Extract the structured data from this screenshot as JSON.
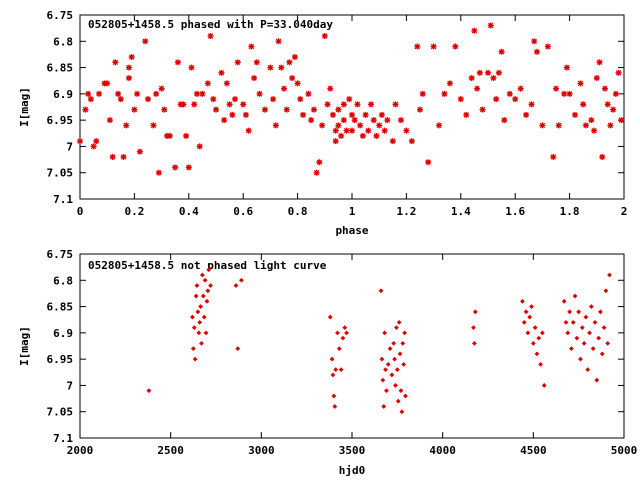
{
  "chart_data": [
    {
      "type": "scatter",
      "title": "052805+1458.5 phased with P=33.040day",
      "xlabel": "phase",
      "ylabel": "I[mag]",
      "xlim": [
        0,
        2
      ],
      "ylim": [
        6.75,
        7.1
      ],
      "y_inverted": true,
      "grid": false,
      "marker": "star",
      "color": "#e00000",
      "x_ticks": [
        "0",
        "0.2",
        "0.4",
        "0.6",
        "0.8",
        "1",
        "1.2",
        "1.4",
        "1.6",
        "1.8",
        "2"
      ],
      "y_ticks": [
        "6.75",
        "6.8",
        "6.85",
        "6.9",
        "6.95",
        "7",
        "7.05",
        "7.1"
      ],
      "series": [
        {
          "points": [
            [
              0.0,
              6.99
            ],
            [
              0.02,
              6.93
            ],
            [
              0.03,
              6.9
            ],
            [
              0.04,
              6.91
            ],
            [
              0.05,
              7.0
            ],
            [
              0.06,
              6.99
            ],
            [
              0.07,
              6.9
            ],
            [
              0.09,
              6.88
            ],
            [
              0.1,
              6.88
            ],
            [
              0.11,
              6.95
            ],
            [
              0.12,
              7.02
            ],
            [
              0.13,
              6.84
            ],
            [
              0.14,
              6.9
            ],
            [
              0.15,
              6.91
            ],
            [
              0.16,
              7.02
            ],
            [
              0.17,
              6.96
            ],
            [
              0.18,
              6.85
            ],
            [
              0.18,
              6.87
            ],
            [
              0.19,
              6.83
            ],
            [
              0.2,
              6.93
            ],
            [
              0.21,
              6.9
            ],
            [
              0.22,
              7.01
            ],
            [
              0.24,
              6.8
            ],
            [
              0.25,
              6.91
            ],
            [
              0.27,
              6.96
            ],
            [
              0.28,
              6.9
            ],
            [
              0.29,
              7.05
            ],
            [
              0.3,
              6.89
            ],
            [
              0.31,
              6.93
            ],
            [
              0.32,
              6.98
            ],
            [
              0.33,
              6.98
            ],
            [
              0.35,
              7.04
            ],
            [
              0.36,
              6.84
            ],
            [
              0.37,
              6.92
            ],
            [
              0.38,
              6.92
            ],
            [
              0.39,
              6.98
            ],
            [
              0.4,
              7.04
            ],
            [
              0.41,
              6.85
            ],
            [
              0.42,
              6.92
            ],
            [
              0.43,
              6.9
            ],
            [
              0.44,
              7.0
            ],
            [
              0.45,
              6.9
            ],
            [
              0.47,
              6.88
            ],
            [
              0.48,
              6.79
            ],
            [
              0.49,
              6.91
            ],
            [
              0.5,
              6.93
            ],
            [
              0.52,
              6.86
            ],
            [
              0.53,
              6.95
            ],
            [
              0.54,
              6.88
            ],
            [
              0.55,
              6.92
            ],
            [
              0.56,
              6.94
            ],
            [
              0.57,
              6.91
            ],
            [
              0.58,
              6.84
            ],
            [
              0.6,
              6.92
            ],
            [
              0.61,
              6.94
            ],
            [
              0.62,
              6.97
            ],
            [
              0.63,
              6.81
            ],
            [
              0.64,
              6.87
            ],
            [
              0.65,
              6.84
            ],
            [
              0.66,
              6.9
            ],
            [
              0.68,
              6.93
            ],
            [
              0.7,
              6.85
            ],
            [
              0.71,
              6.91
            ],
            [
              0.72,
              6.96
            ],
            [
              0.73,
              6.8
            ],
            [
              0.74,
              6.85
            ],
            [
              0.75,
              6.89
            ],
            [
              0.76,
              6.93
            ],
            [
              0.77,
              6.84
            ],
            [
              0.78,
              6.87
            ],
            [
              0.79,
              6.83
            ],
            [
              0.8,
              6.88
            ],
            [
              0.81,
              6.91
            ],
            [
              0.82,
              6.94
            ],
            [
              0.84,
              6.9
            ],
            [
              0.85,
              6.95
            ],
            [
              0.86,
              6.93
            ],
            [
              0.87,
              7.05
            ],
            [
              0.88,
              7.03
            ],
            [
              0.89,
              6.96
            ],
            [
              0.9,
              6.79
            ],
            [
              0.91,
              6.92
            ],
            [
              0.92,
              6.89
            ],
            [
              0.93,
              6.94
            ],
            [
              0.94,
              6.97
            ],
            [
              0.94,
              6.99
            ],
            [
              0.95,
              6.93
            ],
            [
              0.95,
              6.96
            ],
            [
              0.96,
              6.98
            ],
            [
              0.97,
              6.92
            ],
            [
              0.97,
              6.95
            ],
            [
              0.98,
              6.97
            ],
            [
              0.99,
              6.91
            ],
            [
              1.0,
              6.94
            ],
            [
              1.0,
              6.97
            ],
            [
              1.01,
              6.95
            ],
            [
              1.02,
              6.92
            ],
            [
              1.03,
              6.96
            ],
            [
              1.04,
              6.98
            ],
            [
              1.05,
              6.94
            ],
            [
              1.06,
              6.97
            ],
            [
              1.07,
              6.92
            ],
            [
              1.08,
              6.95
            ],
            [
              1.09,
              6.98
            ],
            [
              1.1,
              6.96
            ],
            [
              1.11,
              6.94
            ],
            [
              1.12,
              6.97
            ],
            [
              1.13,
              6.95
            ],
            [
              1.15,
              6.99
            ],
            [
              1.16,
              6.92
            ],
            [
              1.18,
              6.95
            ],
            [
              1.2,
              6.97
            ],
            [
              1.22,
              6.99
            ],
            [
              1.24,
              6.81
            ],
            [
              1.25,
              6.93
            ],
            [
              1.26,
              6.9
            ],
            [
              1.28,
              7.03
            ],
            [
              1.3,
              6.81
            ],
            [
              1.32,
              6.96
            ],
            [
              1.34,
              6.9
            ],
            [
              1.36,
              6.88
            ],
            [
              1.38,
              6.81
            ],
            [
              1.4,
              6.91
            ],
            [
              1.42,
              6.94
            ],
            [
              1.44,
              6.87
            ],
            [
              1.45,
              6.78
            ],
            [
              1.46,
              6.89
            ],
            [
              1.47,
              6.86
            ],
            [
              1.48,
              6.93
            ],
            [
              1.5,
              6.86
            ],
            [
              1.51,
              6.77
            ],
            [
              1.52,
              6.87
            ],
            [
              1.53,
              6.91
            ],
            [
              1.54,
              6.86
            ],
            [
              1.55,
              6.82
            ],
            [
              1.56,
              6.95
            ],
            [
              1.58,
              6.9
            ],
            [
              1.6,
              6.91
            ],
            [
              1.62,
              6.89
            ],
            [
              1.64,
              6.94
            ],
            [
              1.66,
              6.92
            ],
            [
              1.67,
              6.8
            ],
            [
              1.68,
              6.82
            ],
            [
              1.7,
              6.96
            ],
            [
              1.72,
              6.81
            ],
            [
              1.74,
              7.02
            ],
            [
              1.75,
              6.89
            ],
            [
              1.76,
              6.96
            ],
            [
              1.78,
              6.9
            ],
            [
              1.79,
              6.85
            ],
            [
              1.8,
              6.9
            ],
            [
              1.82,
              6.94
            ],
            [
              1.84,
              6.88
            ],
            [
              1.85,
              6.92
            ],
            [
              1.86,
              6.96
            ],
            [
              1.88,
              6.95
            ],
            [
              1.89,
              6.97
            ],
            [
              1.9,
              6.87
            ],
            [
              1.91,
              6.84
            ],
            [
              1.92,
              7.02
            ],
            [
              1.93,
              6.89
            ],
            [
              1.94,
              6.92
            ],
            [
              1.95,
              6.96
            ],
            [
              1.96,
              6.93
            ],
            [
              1.97,
              6.9
            ],
            [
              1.98,
              6.86
            ],
            [
              1.99,
              6.95
            ]
          ]
        }
      ]
    },
    {
      "type": "scatter",
      "title": "052805+1458.5 not phased light curve",
      "xlabel": "hjd0",
      "ylabel": "I[mag]",
      "xlim": [
        2000,
        5000
      ],
      "ylim": [
        6.75,
        7.1
      ],
      "y_inverted": true,
      "grid": false,
      "marker": "diamond",
      "color": "#e00000",
      "x_ticks": [
        "2000",
        "2500",
        "3000",
        "3500",
        "4000",
        "4500",
        "5000"
      ],
      "y_ticks": [
        "6.75",
        "6.8",
        "6.85",
        "6.9",
        "6.95",
        "7",
        "7.05",
        "7.1"
      ],
      "series": [
        {
          "points": [
            [
              2380,
              7.01
            ],
            [
              2620,
              6.87
            ],
            [
              2625,
              6.93
            ],
            [
              2630,
              6.89
            ],
            [
              2635,
              6.95
            ],
            [
              2640,
              6.83
            ],
            [
              2645,
              6.81
            ],
            [
              2650,
              6.86
            ],
            [
              2655,
              6.9
            ],
            [
              2660,
              6.88
            ],
            [
              2665,
              6.85
            ],
            [
              2670,
              6.92
            ],
            [
              2675,
              6.79
            ],
            [
              2680,
              6.83
            ],
            [
              2685,
              6.87
            ],
            [
              2690,
              6.8
            ],
            [
              2695,
              6.9
            ],
            [
              2700,
              6.84
            ],
            [
              2705,
              6.82
            ],
            [
              2710,
              6.78
            ],
            [
              2720,
              6.81
            ],
            [
              2860,
              6.81
            ],
            [
              2870,
              6.93
            ],
            [
              2890,
              6.8
            ],
            [
              3380,
              6.87
            ],
            [
              3390,
              6.95
            ],
            [
              3395,
              6.98
            ],
            [
              3400,
              7.02
            ],
            [
              3405,
              7.04
            ],
            [
              3410,
              6.97
            ],
            [
              3420,
              6.9
            ],
            [
              3430,
              6.93
            ],
            [
              3440,
              6.97
            ],
            [
              3450,
              6.91
            ],
            [
              3460,
              6.89
            ],
            [
              3470,
              6.9
            ],
            [
              3660,
              6.82
            ],
            [
              3665,
              6.95
            ],
            [
              3670,
              6.99
            ],
            [
              3675,
              7.04
            ],
            [
              3680,
              6.9
            ],
            [
              3685,
              6.97
            ],
            [
              3690,
              7.01
            ],
            [
              3700,
              6.96
            ],
            [
              3710,
              6.93
            ],
            [
              3720,
              6.98
            ],
            [
              3730,
              6.92
            ],
            [
              3735,
              6.95
            ],
            [
              3740,
              7.0
            ],
            [
              3745,
              6.89
            ],
            [
              3750,
              6.97
            ],
            [
              3755,
              7.03
            ],
            [
              3760,
              6.88
            ],
            [
              3765,
              6.94
            ],
            [
              3770,
              7.01
            ],
            [
              3775,
              7.05
            ],
            [
              3780,
              6.92
            ],
            [
              3785,
              6.96
            ],
            [
              3790,
              6.9
            ],
            [
              3795,
              7.02
            ],
            [
              4170,
              6.89
            ],
            [
              4175,
              6.92
            ],
            [
              4180,
              6.86
            ],
            [
              4440,
              6.84
            ],
            [
              4450,
              6.88
            ],
            [
              4460,
              6.86
            ],
            [
              4470,
              6.9
            ],
            [
              4480,
              6.87
            ],
            [
              4490,
              6.85
            ],
            [
              4500,
              6.92
            ],
            [
              4510,
              6.89
            ],
            [
              4520,
              6.94
            ],
            [
              4530,
              6.91
            ],
            [
              4540,
              6.96
            ],
            [
              4550,
              6.9
            ],
            [
              4560,
              7.0
            ],
            [
              4670,
              6.84
            ],
            [
              4680,
              6.88
            ],
            [
              4690,
              6.9
            ],
            [
              4700,
              6.86
            ],
            [
              4710,
              6.93
            ],
            [
              4720,
              6.88
            ],
            [
              4730,
              6.83
            ],
            [
              4740,
              6.91
            ],
            [
              4750,
              6.86
            ],
            [
              4760,
              6.95
            ],
            [
              4770,
              6.89
            ],
            [
              4780,
              6.92
            ],
            [
              4790,
              6.87
            ],
            [
              4800,
              6.97
            ],
            [
              4810,
              6.9
            ],
            [
              4820,
              6.85
            ],
            [
              4830,
              6.93
            ],
            [
              4840,
              6.88
            ],
            [
              4850,
              6.99
            ],
            [
              4860,
              6.91
            ],
            [
              4870,
              6.86
            ],
            [
              4880,
              6.94
            ],
            [
              4890,
              6.89
            ],
            [
              4900,
              6.82
            ],
            [
              4910,
              6.92
            ],
            [
              4920,
              6.79
            ]
          ]
        }
      ]
    }
  ]
}
